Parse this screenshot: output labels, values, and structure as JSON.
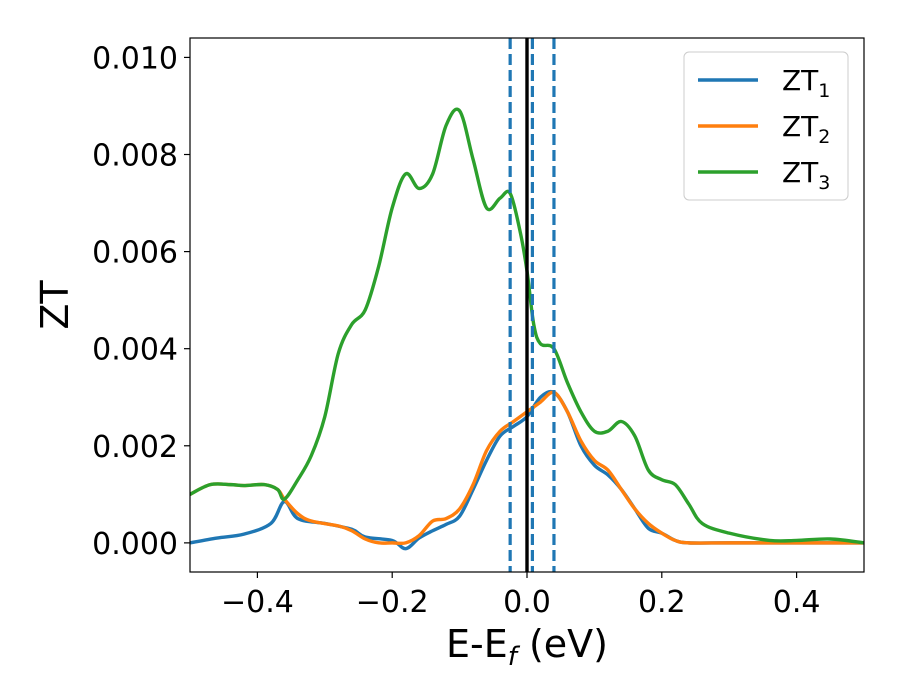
{
  "chart_data": {
    "type": "line",
    "xlabel": {
      "main": "E-E",
      "sub": "f",
      "suffix": " (eV)"
    },
    "ylabel": "ZT",
    "xlim": [
      -0.5,
      0.5
    ],
    "ylim": [
      -0.0006,
      0.0104
    ],
    "x_ticks": [
      -0.4,
      -0.2,
      0.0,
      0.2,
      0.4
    ],
    "x_tick_labels": [
      "−0.4",
      "−0.2",
      "0.0",
      "0.2",
      "0.4"
    ],
    "y_ticks": [
      0.0,
      0.002,
      0.004,
      0.006,
      0.008,
      0.01
    ],
    "y_tick_labels": [
      "0.000",
      "0.002",
      "0.004",
      "0.006",
      "0.008",
      "0.010"
    ],
    "grid": false,
    "legend_position": "top-right",
    "reference_lines": [
      {
        "x": 0.0,
        "style": "solid",
        "color": "#000000"
      },
      {
        "x": -0.025,
        "style": "dashed",
        "color": "#1f77b4"
      },
      {
        "x": 0.008,
        "style": "dashed",
        "color": "#1f77b4"
      },
      {
        "x": 0.04,
        "style": "dashed",
        "color": "#1f77b4"
      }
    ],
    "series": [
      {
        "name": "ZT",
        "subscript": "1",
        "color": "#1f77b4",
        "points": [
          [
            -0.5,
            0.0
          ],
          [
            -0.46,
            0.0001
          ],
          [
            -0.42,
            0.00018
          ],
          [
            -0.38,
            0.0004
          ],
          [
            -0.36,
            0.00085
          ],
          [
            -0.34,
            0.0005
          ],
          [
            -0.3,
            0.0004
          ],
          [
            -0.26,
            0.00028
          ],
          [
            -0.24,
            0.00012
          ],
          [
            -0.2,
            5e-05
          ],
          [
            -0.18,
            -0.00012
          ],
          [
            -0.16,
            0.0001
          ],
          [
            -0.14,
            0.00025
          ],
          [
            -0.12,
            0.00038
          ],
          [
            -0.1,
            0.00055
          ],
          [
            -0.08,
            0.0011
          ],
          [
            -0.06,
            0.0017
          ],
          [
            -0.04,
            0.0022
          ],
          [
            -0.02,
            0.0024
          ],
          [
            0.0,
            0.0026
          ],
          [
            0.02,
            0.003
          ],
          [
            0.04,
            0.0031
          ],
          [
            0.06,
            0.0027
          ],
          [
            0.08,
            0.002
          ],
          [
            0.1,
            0.0016
          ],
          [
            0.12,
            0.0014
          ],
          [
            0.14,
            0.0011
          ],
          [
            0.16,
            0.0007
          ],
          [
            0.18,
            0.0003
          ],
          [
            0.2,
            0.0002
          ],
          [
            0.22,
            5e-05
          ],
          [
            0.24,
            0.0
          ],
          [
            0.3,
            0.0
          ],
          [
            0.4,
            0.0
          ],
          [
            0.5,
            0.0
          ]
        ]
      },
      {
        "name": "ZT",
        "subscript": "2",
        "color": "#ff7f0e",
        "points": [
          [
            -0.5,
            0.001
          ],
          [
            -0.47,
            0.0012
          ],
          [
            -0.44,
            0.0012
          ],
          [
            -0.42,
            0.00118
          ],
          [
            -0.39,
            0.0012
          ],
          [
            -0.37,
            0.0011
          ],
          [
            -0.36,
            0.0009
          ],
          [
            -0.34,
            0.0006
          ],
          [
            -0.32,
            0.00045
          ],
          [
            -0.28,
            0.00035
          ],
          [
            -0.26,
            0.00025
          ],
          [
            -0.24,
            8e-05
          ],
          [
            -0.22,
            0.0
          ],
          [
            -0.2,
            0.0
          ],
          [
            -0.18,
            0.0
          ],
          [
            -0.16,
            0.00015
          ],
          [
            -0.14,
            0.00045
          ],
          [
            -0.12,
            0.0005
          ],
          [
            -0.1,
            0.0007
          ],
          [
            -0.08,
            0.0012
          ],
          [
            -0.06,
            0.0019
          ],
          [
            -0.04,
            0.0023
          ],
          [
            -0.02,
            0.0025
          ],
          [
            0.0,
            0.0027
          ],
          [
            0.02,
            0.0029
          ],
          [
            0.04,
            0.0031
          ],
          [
            0.06,
            0.0027
          ],
          [
            0.08,
            0.0021
          ],
          [
            0.1,
            0.0017
          ],
          [
            0.12,
            0.0015
          ],
          [
            0.14,
            0.0011
          ],
          [
            0.16,
            0.0007
          ],
          [
            0.18,
            0.0004
          ],
          [
            0.2,
            0.0002
          ],
          [
            0.22,
            5e-05
          ],
          [
            0.24,
            0.0
          ],
          [
            0.3,
            0.0
          ],
          [
            0.4,
            0.0
          ],
          [
            0.5,
            0.0
          ]
        ]
      },
      {
        "name": "ZT",
        "subscript": "3",
        "color": "#2ca02c",
        "points": [
          [
            -0.5,
            0.001
          ],
          [
            -0.47,
            0.0012
          ],
          [
            -0.44,
            0.0012
          ],
          [
            -0.42,
            0.00118
          ],
          [
            -0.39,
            0.0012
          ],
          [
            -0.37,
            0.0011
          ],
          [
            -0.36,
            0.0009
          ],
          [
            -0.34,
            0.0013
          ],
          [
            -0.32,
            0.0018
          ],
          [
            -0.3,
            0.0026
          ],
          [
            -0.28,
            0.0039
          ],
          [
            -0.26,
            0.0045
          ],
          [
            -0.24,
            0.0048
          ],
          [
            -0.22,
            0.0057
          ],
          [
            -0.2,
            0.0069
          ],
          [
            -0.18,
            0.0076
          ],
          [
            -0.16,
            0.0073
          ],
          [
            -0.14,
            0.0076
          ],
          [
            -0.12,
            0.0086
          ],
          [
            -0.1,
            0.0089
          ],
          [
            -0.08,
            0.0079
          ],
          [
            -0.06,
            0.0069
          ],
          [
            -0.04,
            0.0071
          ],
          [
            -0.025,
            0.0072
          ],
          [
            -0.01,
            0.0064
          ],
          [
            0.0,
            0.0056
          ],
          [
            0.01,
            0.0045
          ],
          [
            0.02,
            0.0041
          ],
          [
            0.04,
            0.004
          ],
          [
            0.06,
            0.0033
          ],
          [
            0.08,
            0.0027
          ],
          [
            0.1,
            0.0023
          ],
          [
            0.12,
            0.0023
          ],
          [
            0.14,
            0.0025
          ],
          [
            0.16,
            0.0022
          ],
          [
            0.18,
            0.0015
          ],
          [
            0.2,
            0.0013
          ],
          [
            0.22,
            0.0012
          ],
          [
            0.24,
            0.0008
          ],
          [
            0.26,
            0.0004
          ],
          [
            0.3,
            0.0002
          ],
          [
            0.36,
            5e-05
          ],
          [
            0.4,
            5e-05
          ],
          [
            0.45,
            8e-05
          ],
          [
            0.5,
            0.0
          ]
        ]
      }
    ]
  }
}
